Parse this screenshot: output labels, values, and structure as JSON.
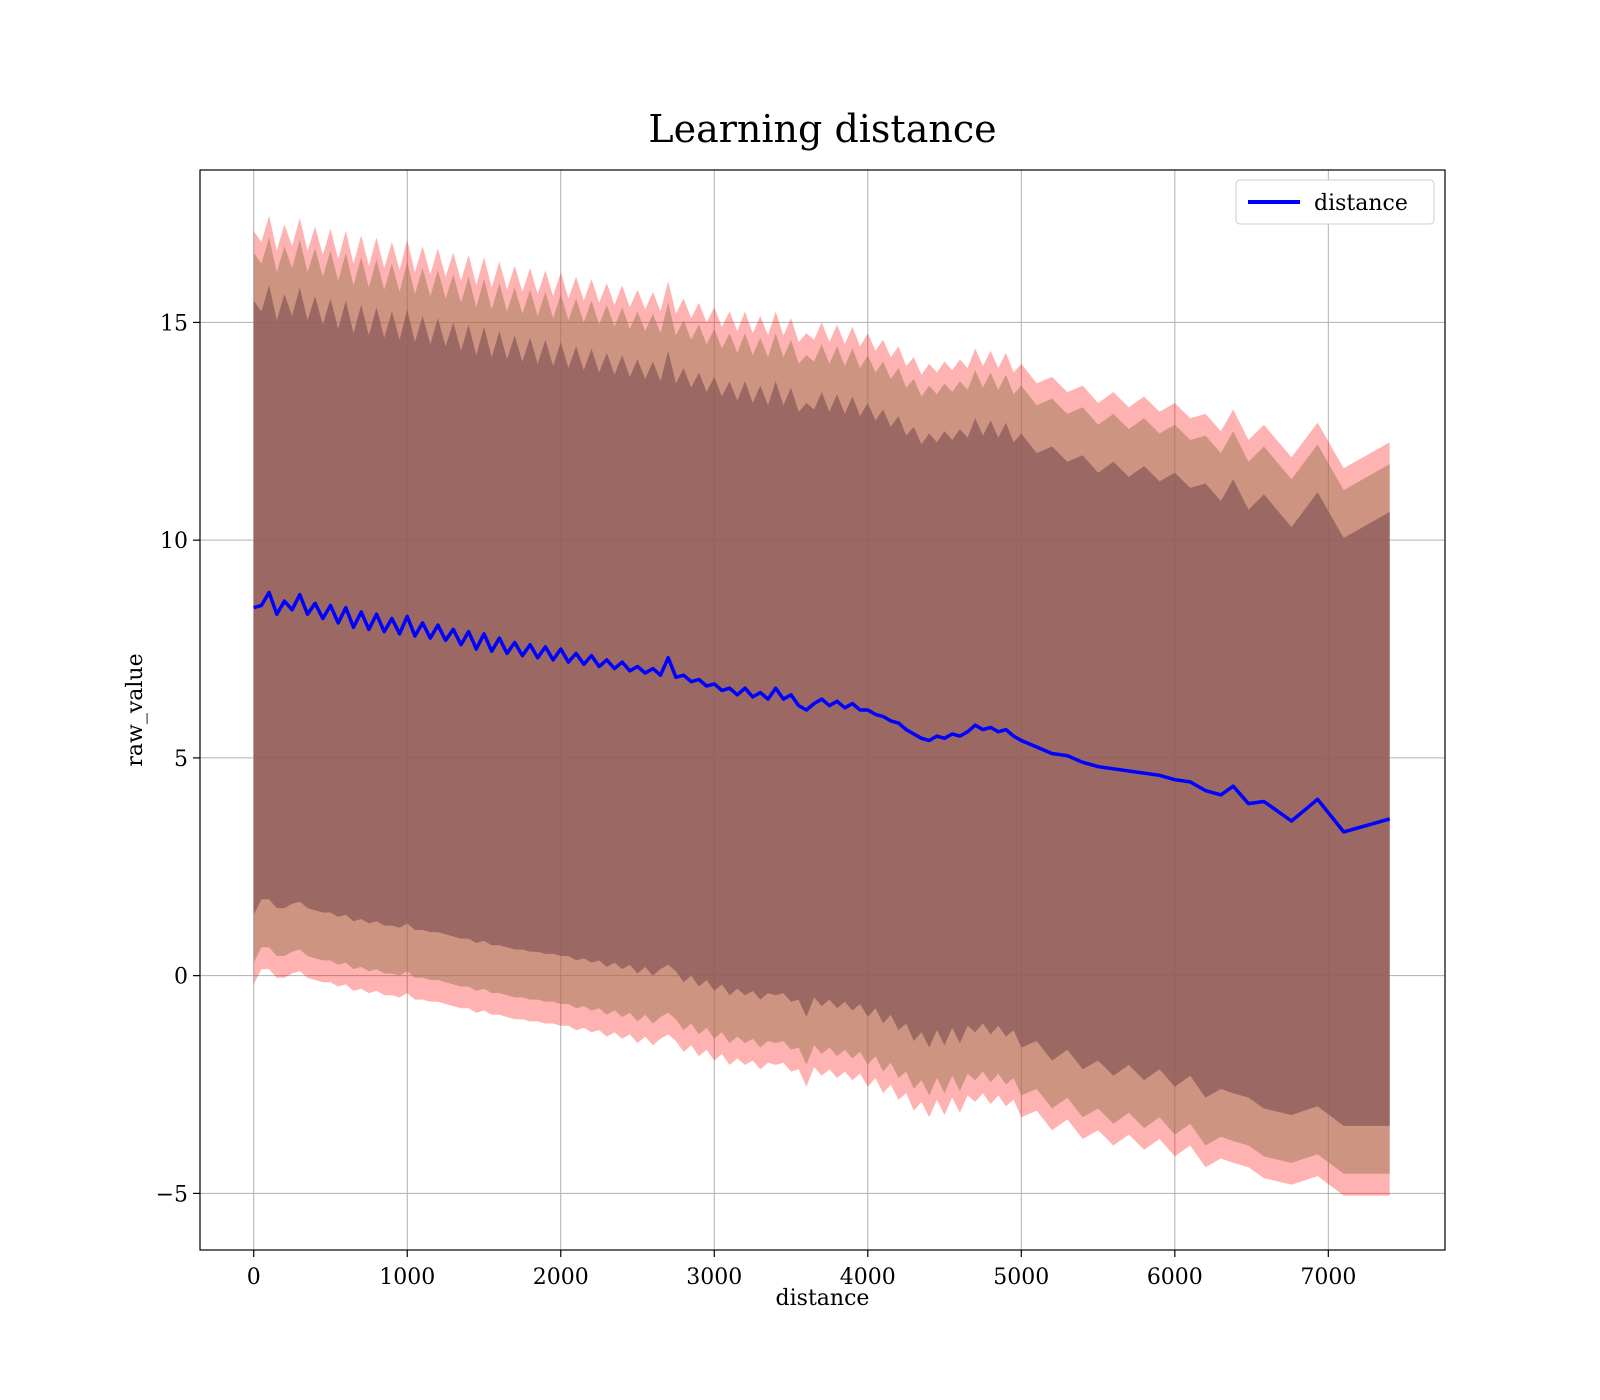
{
  "chart_data": {
    "type": "line",
    "title": "Learning distance",
    "xlabel": "distance",
    "ylabel": "raw_value",
    "xlim": [
      -350,
      7760
    ],
    "ylim": [
      -6.3,
      18.5
    ],
    "xticks": [
      0,
      1000,
      2000,
      3000,
      4000,
      5000,
      6000,
      7000
    ],
    "yticks": [
      -5,
      0,
      5,
      10,
      15
    ],
    "ytick_labels": [
      "−5",
      "0",
      "5",
      "10",
      "15"
    ],
    "grid": true,
    "legend_position": "upper-right",
    "line_color": "#0000ff",
    "band_color": "#ff0000",
    "band_inner_color": "#8b5a5a",
    "series": [
      {
        "name": "distance",
        "x": [
          0,
          50,
          100,
          150,
          200,
          250,
          300,
          350,
          400,
          450,
          500,
          550,
          600,
          650,
          700,
          750,
          800,
          850,
          900,
          950,
          1000,
          1050,
          1100,
          1150,
          1200,
          1250,
          1300,
          1350,
          1400,
          1450,
          1500,
          1550,
          1600,
          1650,
          1700,
          1750,
          1800,
          1850,
          1900,
          1950,
          2000,
          2050,
          2100,
          2150,
          2200,
          2250,
          2300,
          2350,
          2400,
          2450,
          2500,
          2550,
          2600,
          2650,
          2700,
          2750,
          2800,
          2850,
          2900,
          2950,
          3000,
          3050,
          3100,
          3150,
          3200,
          3250,
          3300,
          3350,
          3400,
          3450,
          3500,
          3550,
          3600,
          3650,
          3700,
          3750,
          3800,
          3850,
          3900,
          3950,
          4000,
          4050,
          4100,
          4150,
          4200,
          4250,
          4300,
          4350,
          4400,
          4450,
          4500,
          4550,
          4600,
          4650,
          4700,
          4750,
          4800,
          4850,
          4900,
          4950,
          5000,
          5100,
          5200,
          5300,
          5400,
          5500,
          5600,
          5700,
          5800,
          5900,
          6000,
          6100,
          6200,
          6300,
          6380,
          6480,
          6580,
          6760,
          6930,
          7100,
          7400
        ],
        "y": [
          8.45,
          8.5,
          8.8,
          8.3,
          8.6,
          8.4,
          8.75,
          8.3,
          8.55,
          8.2,
          8.5,
          8.1,
          8.45,
          8.0,
          8.35,
          7.95,
          8.3,
          7.9,
          8.2,
          7.85,
          8.25,
          7.8,
          8.1,
          7.75,
          8.05,
          7.7,
          7.95,
          7.6,
          7.9,
          7.5,
          7.85,
          7.45,
          7.75,
          7.4,
          7.65,
          7.35,
          7.6,
          7.3,
          7.55,
          7.25,
          7.5,
          7.2,
          7.4,
          7.15,
          7.35,
          7.1,
          7.25,
          7.05,
          7.2,
          7.0,
          7.1,
          6.95,
          7.05,
          6.9,
          7.3,
          6.85,
          6.9,
          6.75,
          6.8,
          6.65,
          6.7,
          6.55,
          6.6,
          6.45,
          6.6,
          6.4,
          6.5,
          6.35,
          6.6,
          6.35,
          6.45,
          6.2,
          6.1,
          6.25,
          6.35,
          6.2,
          6.3,
          6.15,
          6.25,
          6.1,
          6.1,
          6.0,
          5.95,
          5.85,
          5.8,
          5.65,
          5.55,
          5.45,
          5.4,
          5.5,
          5.45,
          5.55,
          5.5,
          5.6,
          5.75,
          5.65,
          5.7,
          5.6,
          5.65,
          5.5,
          5.4,
          5.25,
          5.1,
          5.05,
          4.9,
          4.8,
          4.75,
          4.7,
          4.65,
          4.6,
          4.5,
          4.45,
          4.25,
          4.15,
          4.35,
          3.95,
          4.0,
          3.55,
          4.05,
          3.3,
          3.6
        ],
        "band_inner_half_width": 6.9,
        "band_middle_half_width": 8.0,
        "band_outer_half_width": 8.5
      }
    ]
  }
}
